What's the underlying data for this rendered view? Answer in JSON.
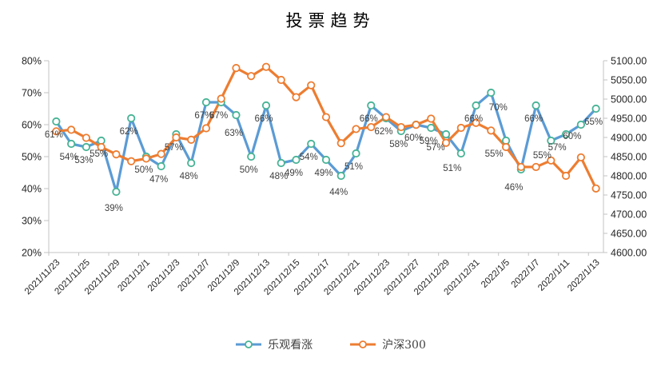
{
  "title": "投票趋势",
  "colors": {
    "blue_line": "#5b9bd5",
    "blue_marker_ring": "#47b394",
    "orange_line": "#ed7d31",
    "axis_line": "#c3c3c3",
    "tick_text": "#262626",
    "data_label_text": "#404040"
  },
  "chart_data": {
    "type": "line",
    "title": "投票趋势",
    "legend_position": "bottom",
    "grid": false,
    "n_points": 37,
    "x_label_interval": 2,
    "x_labels": [
      "2021/11/23",
      "2021/11/25",
      "2021/11/29",
      "2021/12/1",
      "2021/12/3",
      "2021/12/7",
      "2021/12/9",
      "2021/12/13",
      "2021/12/15",
      "2021/12/17",
      "2021/12/21",
      "2021/12/23",
      "2021/12/27",
      "2021/12/29",
      "2021/12/31",
      "2022/1/5",
      "2022/1/7",
      "2022/1/11",
      "2022/1/13"
    ],
    "left_axis": {
      "min": 20,
      "max": 80,
      "step": 10,
      "unit": "%",
      "ticks": [
        "80%",
        "70%",
        "60%",
        "50%",
        "40%",
        "30%",
        "20%"
      ]
    },
    "right_axis": {
      "min": 4600,
      "max": 5100,
      "step": 50,
      "ticks": [
        "5100.00",
        "5050.00",
        "5000.00",
        "4950.00",
        "4900.00",
        "4850.00",
        "4800.00",
        "4750.00",
        "4700.00",
        "4650.00",
        "4600.00"
      ]
    },
    "series": [
      {
        "name": "乐观看涨",
        "axis": "left",
        "color": "#5b9bd5",
        "marker": "circle-open",
        "marker_ring": "#47b394",
        "data_labels": true,
        "label_format": "{v}%",
        "values": [
          61,
          54,
          53,
          55,
          39,
          62,
          50,
          47,
          57,
          48,
          67,
          67,
          63,
          50,
          66,
          48,
          49,
          54,
          49,
          44,
          51,
          66,
          62,
          58,
          60,
          59,
          57,
          51,
          66,
          70,
          55,
          46,
          66,
          55,
          57,
          60,
          65
        ]
      },
      {
        "name": "沪深300",
        "axis": "right",
        "color": "#ed7d31",
        "marker": "circle-open",
        "marker_ring": "#ed7d31",
        "data_labels": false,
        "values": [
          4916,
          4920,
          4899,
          4875,
          4856,
          4838,
          4845,
          4857,
          4900,
          4894,
          4924,
          5001,
          5081,
          5060,
          5084,
          5050,
          5005,
          5036,
          4953,
          4885,
          4922,
          4927,
          4953,
          4927,
          4933,
          4949,
          4886,
          4925,
          4938,
          4918,
          4875,
          4823,
          4823,
          4840,
          4800,
          4848,
          4767
        ]
      }
    ]
  }
}
